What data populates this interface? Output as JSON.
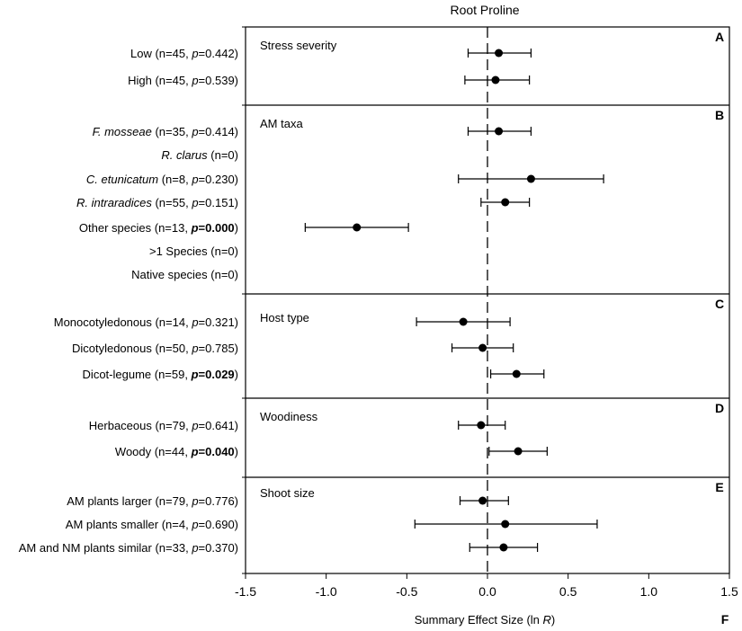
{
  "chart_data": {
    "type": "scatter",
    "subtype": "forest-plot",
    "title": "Root Proline",
    "xlabel": "Summary Effect Size (ln R)",
    "xlabel_parts": [
      "Summary Effect Size (ln ",
      "R",
      ")"
    ],
    "xlim": [
      -1.5,
      1.5
    ],
    "xticks": [
      "-1.5",
      "-1.0",
      "-0.5",
      "0.0",
      "0.5",
      "1.0",
      "1.5"
    ],
    "xtick_values": [
      -1.5,
      -1.0,
      -0.5,
      0.0,
      0.5,
      1.0,
      1.5
    ],
    "reference_line": 0,
    "footer_letter": "F",
    "panels": [
      {
        "letter": "A",
        "title": "Stress severity",
        "rows": [
          {
            "parts": [
              {
                "t": "Low (n=45, ",
                "s": "n"
              },
              {
                "t": "p",
                "s": "i"
              },
              {
                "t": "=0.442)",
                "s": "n"
              }
            ],
            "label": "Low (n=45, p=0.442)",
            "mean": 0.07,
            "lo": -0.12,
            "hi": 0.27
          },
          {
            "parts": [
              {
                "t": "High (n=45, ",
                "s": "n"
              },
              {
                "t": "p",
                "s": "i"
              },
              {
                "t": "=0.539)",
                "s": "n"
              }
            ],
            "label": "High (n=45, p=0.539)",
            "mean": 0.05,
            "lo": -0.14,
            "hi": 0.26
          }
        ]
      },
      {
        "letter": "B",
        "title": "AM taxa",
        "rows": [
          {
            "parts": [
              {
                "t": "F. mosseae",
                "s": "i"
              },
              {
                "t": " (n=35, ",
                "s": "n"
              },
              {
                "t": "p",
                "s": "i"
              },
              {
                "t": "=0.414)",
                "s": "n"
              }
            ],
            "label": "F. mosseae (n=35, p=0.414)",
            "mean": 0.07,
            "lo": -0.12,
            "hi": 0.27
          },
          {
            "parts": [
              {
                "t": "R. clarus",
                "s": "i"
              },
              {
                "t": " (n=0)",
                "s": "n"
              }
            ],
            "label": "R. clarus (n=0)",
            "mean": null,
            "lo": null,
            "hi": null
          },
          {
            "parts": [
              {
                "t": "C. etunicatum",
                "s": "i"
              },
              {
                "t": " (n=8, ",
                "s": "n"
              },
              {
                "t": "p",
                "s": "i"
              },
              {
                "t": "=0.230)",
                "s": "n"
              }
            ],
            "label": "C. etunicatum (n=8, p=0.230)",
            "mean": 0.27,
            "lo": -0.18,
            "hi": 0.72
          },
          {
            "parts": [
              {
                "t": "R. intraradices",
                "s": "i"
              },
              {
                "t": " (n=55, ",
                "s": "n"
              },
              {
                "t": "p",
                "s": "i"
              },
              {
                "t": "=0.151)",
                "s": "n"
              }
            ],
            "label": "R. intraradices (n=55, p=0.151)",
            "mean": 0.11,
            "lo": -0.04,
            "hi": 0.26
          },
          {
            "parts": [
              {
                "t": "Other species (n=13, ",
                "s": "n"
              },
              {
                "t": "p",
                "s": "bi"
              },
              {
                "t": "=0.000",
                "s": "b"
              },
              {
                "t": ")",
                "s": "n"
              }
            ],
            "label": "Other species (n=13, p=0.000)",
            "mean": -0.81,
            "lo": -1.13,
            "hi": -0.49
          },
          {
            "parts": [
              {
                "t": ">1 Species (n=0)",
                "s": "n"
              }
            ],
            "label": ">1 Species (n=0)",
            "mean": null,
            "lo": null,
            "hi": null
          },
          {
            "parts": [
              {
                "t": "Native species (n=0)",
                "s": "n"
              }
            ],
            "label": "Native species (n=0)",
            "mean": null,
            "lo": null,
            "hi": null
          }
        ]
      },
      {
        "letter": "C",
        "title": "Host type",
        "rows": [
          {
            "parts": [
              {
                "t": "Monocotyledonous (n=14, ",
                "s": "n"
              },
              {
                "t": "p",
                "s": "i"
              },
              {
                "t": "=0.321)",
                "s": "n"
              }
            ],
            "label": "Monocotyledonous (n=14, p=0.321)",
            "mean": -0.15,
            "lo": -0.44,
            "hi": 0.14
          },
          {
            "parts": [
              {
                "t": "Dicotyledonous (n=50, ",
                "s": "n"
              },
              {
                "t": "p",
                "s": "i"
              },
              {
                "t": "=0.785)",
                "s": "n"
              }
            ],
            "label": "Dicotyledonous (n=50, p=0.785)",
            "mean": -0.03,
            "lo": -0.22,
            "hi": 0.16
          },
          {
            "parts": [
              {
                "t": "Dicot-legume (n=59, ",
                "s": "n"
              },
              {
                "t": "p",
                "s": "bi"
              },
              {
                "t": "=0.029",
                "s": "b"
              },
              {
                "t": ")",
                "s": "n"
              }
            ],
            "label": "Dicot-legume (n=59, p=0.029)",
            "mean": 0.18,
            "lo": 0.02,
            "hi": 0.35
          }
        ]
      },
      {
        "letter": "D",
        "title": "Woodiness",
        "rows": [
          {
            "parts": [
              {
                "t": "Herbaceous (n=79, ",
                "s": "n"
              },
              {
                "t": "p",
                "s": "i"
              },
              {
                "t": "=0.641)",
                "s": "n"
              }
            ],
            "label": "Herbaceous (n=79, p=0.641)",
            "mean": -0.04,
            "lo": -0.18,
            "hi": 0.11
          },
          {
            "parts": [
              {
                "t": "Woody (n=44, ",
                "s": "n"
              },
              {
                "t": "p",
                "s": "bi"
              },
              {
                "t": "=0.040",
                "s": "b"
              },
              {
                "t": ")",
                "s": "n"
              }
            ],
            "label": "Woody (n=44, p=0.040)",
            "mean": 0.19,
            "lo": 0.01,
            "hi": 0.37
          }
        ]
      },
      {
        "letter": "E",
        "title": "Shoot size",
        "rows": [
          {
            "parts": [
              {
                "t": "AM plants larger (n=79, ",
                "s": "n"
              },
              {
                "t": "p",
                "s": "i"
              },
              {
                "t": "=0.776)",
                "s": "n"
              }
            ],
            "label": "AM plants larger (n=79, p=0.776)",
            "mean": -0.03,
            "lo": -0.17,
            "hi": 0.13
          },
          {
            "parts": [
              {
                "t": "AM plants smaller (n=4, ",
                "s": "n"
              },
              {
                "t": "p",
                "s": "i"
              },
              {
                "t": "=0.690)",
                "s": "n"
              }
            ],
            "label": "AM plants smaller (n=4, p=0.690)",
            "mean": 0.11,
            "lo": -0.45,
            "hi": 0.68
          },
          {
            "parts": [
              {
                "t": "AM and NM plants similar (n=33, ",
                "s": "n"
              },
              {
                "t": "p",
                "s": "i"
              },
              {
                "t": "=0.370)",
                "s": "n"
              }
            ],
            "label": "AM and NM plants similar (n=33, p=0.370)",
            "mean": 0.1,
            "lo": -0.11,
            "hi": 0.31
          }
        ]
      }
    ]
  }
}
